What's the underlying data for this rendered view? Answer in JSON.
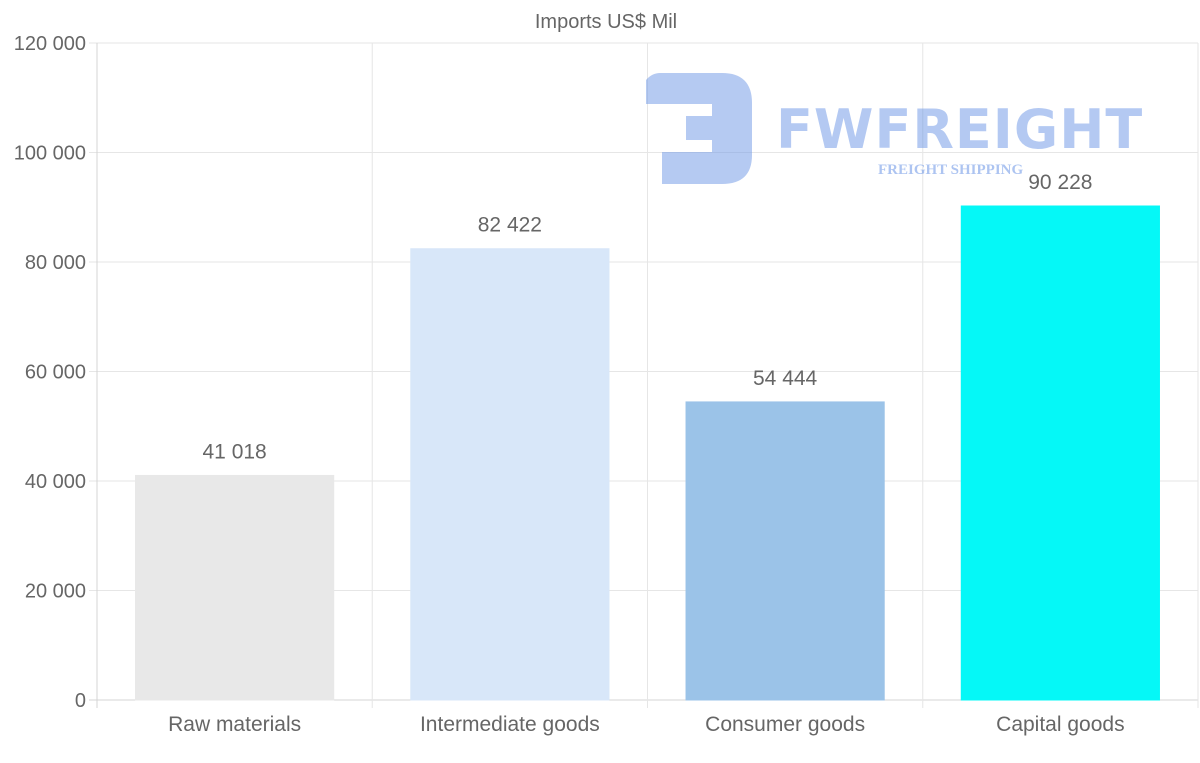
{
  "chart_data": {
    "type": "bar",
    "title": "Imports US$ Mil",
    "categories": [
      "Raw materials",
      "Intermediate goods",
      "Consumer goods",
      "Capital goods"
    ],
    "values": [
      41018,
      82422,
      54444,
      90228
    ],
    "value_labels": [
      "41 018",
      "82 422",
      "54 444",
      "90 228"
    ],
    "bar_colors": [
      "#e8e8e8",
      "#d8e7f9",
      "#9bc3e8",
      "#05f8f7"
    ],
    "ylim": [
      0,
      120000
    ],
    "yticks": [
      0,
      20000,
      40000,
      60000,
      80000,
      100000,
      120000
    ],
    "ytick_labels": [
      "0",
      "20 000",
      "40 000",
      "60 000",
      "80 000",
      "100 000",
      "120 000"
    ],
    "xlabel": "",
    "ylabel": "",
    "grid": true
  },
  "watermark": {
    "brand": "FWFREIGHT",
    "tagline": "FREIGHT SHIPPING",
    "color": "#6b95e6"
  }
}
